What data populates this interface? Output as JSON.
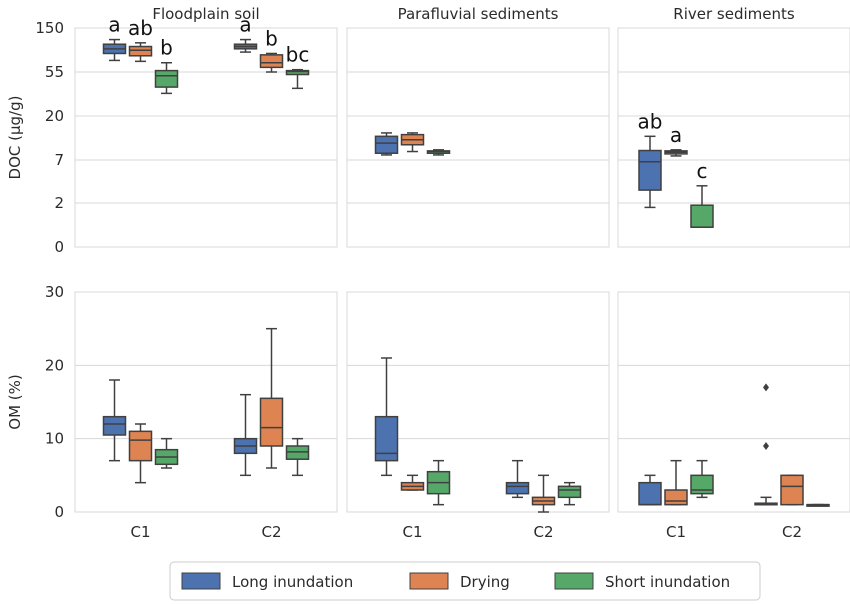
{
  "chart_data": {
    "type": "box",
    "layout": "2 rows x 3 columns facet grid",
    "panel_titles": [
      "Floodplain soil",
      "Parafluvial sediments",
      "River sediments"
    ],
    "x_categories": [
      "C1",
      "C2"
    ],
    "series": [
      {
        "name": "Long inundation",
        "color": "#4c72b0"
      },
      {
        "name": "Drying",
        "color": "#dd8452"
      },
      {
        "name": "Short inundation",
        "color": "#55a868"
      }
    ],
    "legend_position": "bottom-center",
    "rows": [
      {
        "ylabel": "DOC (µg/g)",
        "y_ticks": [
          "150",
          "55",
          "20",
          "7",
          "2",
          "0"
        ],
        "scale": "log-like (ticks at 0, 2, 7, 20, 55, 150)",
        "panels": [
          {
            "boxes": [
              {
                "cat": "C1",
                "series": "Long inundation",
                "min": 80,
                "q1": 95,
                "median": 105,
                "q3": 115,
                "max": 125
              },
              {
                "cat": "C1",
                "series": "Drying",
                "min": 78,
                "q1": 90,
                "median": 102,
                "q3": 110,
                "max": 118
              },
              {
                "cat": "C1",
                "series": "Short inundation",
                "min": 38,
                "q1": 43,
                "median": 52,
                "q3": 58,
                "max": 75
              },
              {
                "cat": "C2",
                "series": "Long inundation",
                "min": 98,
                "q1": 105,
                "median": 110,
                "q3": 115,
                "max": 125
              },
              {
                "cat": "C2",
                "series": "Drying",
                "min": 55,
                "q1": 65,
                "median": 75,
                "q3": 92,
                "max": 95
              },
              {
                "cat": "C2",
                "series": "Short inundation",
                "min": 42,
                "q1": 53,
                "median": 56,
                "q3": 58,
                "max": 60
              }
            ],
            "outliers": [],
            "annotations": [
              {
                "cat": "C1",
                "series": "Long inundation",
                "text": "a"
              },
              {
                "cat": "C1",
                "series": "Drying",
                "text": "ab"
              },
              {
                "cat": "C1",
                "series": "Short inundation",
                "text": "b"
              },
              {
                "cat": "C2",
                "series": "Long inundation",
                "text": "a"
              },
              {
                "cat": "C2",
                "series": "Drying",
                "text": "b"
              },
              {
                "cat": "C2",
                "series": "Short inundation",
                "text": "bc"
              }
            ]
          },
          {
            "boxes": [
              {
                "cat": "C1",
                "series": "Long inundation",
                "min": 8.5,
                "q1": 9,
                "median": 12,
                "q3": 14,
                "max": 15
              },
              {
                "cat": "C1",
                "series": "Drying",
                "min": 9.5,
                "q1": 11.5,
                "median": 13,
                "q3": 14.5,
                "max": 15
              },
              {
                "cat": "C1",
                "series": "Short inundation",
                "min": 8.5,
                "q1": 9,
                "median": 9.5,
                "q3": 9.7,
                "max": 10
              }
            ],
            "outliers": [],
            "annotations": []
          },
          {
            "boxes": [
              {
                "cat": "C1",
                "series": "Long inundation",
                "min": 1.8,
                "q1": 3.5,
                "median": 6.8,
                "q3": 9.8,
                "max": 14
              },
              {
                "cat": "C1",
                "series": "Drying",
                "min": 8.2,
                "q1": 8.8,
                "median": 9.3,
                "q3": 9.7,
                "max": 10
              },
              {
                "cat": "C1",
                "series": "Short inundation",
                "min": 0.9,
                "q1": 0.9,
                "median": 0.9,
                "q3": 1.9,
                "max": 4
              }
            ],
            "outliers": [],
            "annotations": [
              {
                "cat": "C1",
                "series": "Long inundation",
                "text": "ab"
              },
              {
                "cat": "C1",
                "series": "Drying",
                "text": "a"
              },
              {
                "cat": "C1",
                "series": "Short inundation",
                "text": "c"
              }
            ]
          }
        ]
      },
      {
        "ylabel": "OM (%)",
        "y_ticks": [
          "30",
          "20",
          "10",
          "0"
        ],
        "ylim": [
          0,
          30
        ],
        "panels": [
          {
            "boxes": [
              {
                "cat": "C1",
                "series": "Long inundation",
                "min": 7,
                "q1": 10.5,
                "median": 12,
                "q3": 13,
                "max": 18
              },
              {
                "cat": "C1",
                "series": "Drying",
                "min": 4,
                "q1": 7,
                "median": 9.8,
                "q3": 11,
                "max": 12
              },
              {
                "cat": "C1",
                "series": "Short inundation",
                "min": 6,
                "q1": 6.5,
                "median": 7.5,
                "q3": 8.5,
                "max": 10
              },
              {
                "cat": "C2",
                "series": "Long inundation",
                "min": 5,
                "q1": 8,
                "median": 9,
                "q3": 10,
                "max": 16
              },
              {
                "cat": "C2",
                "series": "Drying",
                "min": 6,
                "q1": 9,
                "median": 11.5,
                "q3": 15.5,
                "max": 25
              },
              {
                "cat": "C2",
                "series": "Short inundation",
                "min": 5,
                "q1": 7.2,
                "median": 8.2,
                "q3": 9,
                "max": 10
              }
            ],
            "outliers": [],
            "annotations": []
          },
          {
            "boxes": [
              {
                "cat": "C1",
                "series": "Long inundation",
                "min": 5,
                "q1": 7,
                "median": 8,
                "q3": 13,
                "max": 21
              },
              {
                "cat": "C1",
                "series": "Drying",
                "min": 3,
                "q1": 3,
                "median": 3.5,
                "q3": 4,
                "max": 5
              },
              {
                "cat": "C1",
                "series": "Short inundation",
                "min": 1,
                "q1": 2.5,
                "median": 4,
                "q3": 5.5,
                "max": 7
              },
              {
                "cat": "C2",
                "series": "Long inundation",
                "min": 2,
                "q1": 2.5,
                "median": 3.5,
                "q3": 4,
                "max": 7
              },
              {
                "cat": "C2",
                "series": "Drying",
                "min": 0,
                "q1": 1,
                "median": 1.5,
                "q3": 2,
                "max": 5
              },
              {
                "cat": "C2",
                "series": "Short inundation",
                "min": 1,
                "q1": 2,
                "median": 3,
                "q3": 3.5,
                "max": 4
              }
            ],
            "outliers": [],
            "annotations": []
          },
          {
            "boxes": [
              {
                "cat": "C1",
                "series": "Long inundation",
                "min": 1,
                "q1": 1,
                "median": 1,
                "q3": 4,
                "max": 5
              },
              {
                "cat": "C1",
                "series": "Drying",
                "min": 1,
                "q1": 1,
                "median": 1.5,
                "q3": 3,
                "max": 7
              },
              {
                "cat": "C1",
                "series": "Short inundation",
                "min": 2,
                "q1": 2.5,
                "median": 3,
                "q3": 5,
                "max": 7
              },
              {
                "cat": "C2",
                "series": "Long inundation",
                "min": 1,
                "q1": 1,
                "median": 1,
                "q3": 1.2,
                "max": 2
              },
              {
                "cat": "C2",
                "series": "Drying",
                "min": 1,
                "q1": 1,
                "median": 3.5,
                "q3": 5,
                "max": 5
              },
              {
                "cat": "C2",
                "series": "Short inundation",
                "min": 1,
                "q1": 1,
                "median": 1,
                "q3": 1,
                "max": 1
              }
            ],
            "outliers": [
              {
                "cat": "C2",
                "series": "Long inundation",
                "value": 17
              },
              {
                "cat": "C2",
                "series": "Long inundation",
                "value": 9
              }
            ],
            "annotations": []
          }
        ]
      }
    ]
  }
}
